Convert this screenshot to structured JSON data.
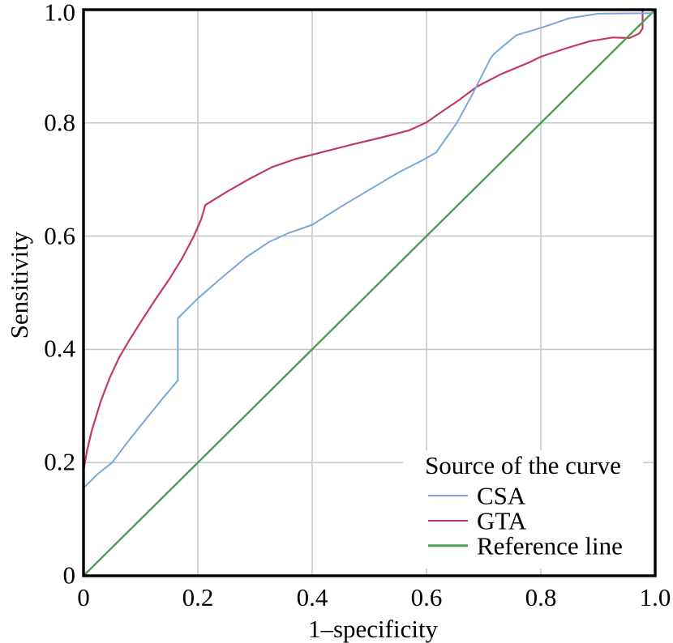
{
  "chart_data": {
    "type": "line",
    "title": "",
    "xlabel": "1–specificity",
    "ylabel": "Sensitivity",
    "xlim": [
      0,
      1.0
    ],
    "ylim": [
      0,
      1.0
    ],
    "grid": {
      "on": true,
      "color": "#c6cacd",
      "positions": [
        0.2,
        0.4,
        0.6,
        0.8
      ]
    },
    "frame_color": "#000000",
    "ticks": {
      "x": [
        0,
        0.2,
        0.4,
        0.6,
        0.8,
        1.0
      ],
      "x_labels": [
        "0",
        "0.2",
        "0.4",
        "0.6",
        "0.8",
        "1.0"
      ],
      "y": [
        0,
        0.2,
        0.4,
        0.6,
        0.8,
        1.0
      ],
      "y_labels": [
        "0",
        "0.2",
        "0.4",
        "0.6",
        "0.8",
        "1.0"
      ]
    },
    "legend": {
      "title": "Source of the curve",
      "position": "bottom-right"
    },
    "series": [
      {
        "name": "CSA",
        "color": "#7ba6d9",
        "line_width": 2.0,
        "legend_line_width": 2,
        "z": 3,
        "points": [
          [
            0.0,
            0.155
          ],
          [
            0.025,
            0.18
          ],
          [
            0.05,
            0.2
          ],
          [
            0.08,
            0.24
          ],
          [
            0.11,
            0.278
          ],
          [
            0.14,
            0.315
          ],
          [
            0.165,
            0.345
          ],
          [
            0.165,
            0.455
          ],
          [
            0.2,
            0.49
          ],
          [
            0.24,
            0.525
          ],
          [
            0.285,
            0.563
          ],
          [
            0.325,
            0.59
          ],
          [
            0.36,
            0.606
          ],
          [
            0.4,
            0.62
          ],
          [
            0.45,
            0.652
          ],
          [
            0.5,
            0.682
          ],
          [
            0.55,
            0.712
          ],
          [
            0.595,
            0.735
          ],
          [
            0.617,
            0.748
          ],
          [
            0.653,
            0.8
          ],
          [
            0.68,
            0.85
          ],
          [
            0.712,
            0.914
          ],
          [
            0.718,
            0.922
          ],
          [
            0.757,
            0.955
          ],
          [
            0.8,
            0.968
          ],
          [
            0.85,
            0.985
          ],
          [
            0.9,
            0.993
          ],
          [
            1.0,
            0.994
          ],
          [
            1.0,
            1.0
          ]
        ]
      },
      {
        "name": "GTA",
        "color": "#c23a64",
        "line_width": 2.2,
        "legend_line_width": 2,
        "z": 1,
        "points": [
          [
            0.0,
            0.0
          ],
          [
            0.0,
            0.185
          ],
          [
            0.006,
            0.22
          ],
          [
            0.014,
            0.255
          ],
          [
            0.03,
            0.308
          ],
          [
            0.046,
            0.35
          ],
          [
            0.062,
            0.385
          ],
          [
            0.08,
            0.416
          ],
          [
            0.1,
            0.448
          ],
          [
            0.125,
            0.487
          ],
          [
            0.15,
            0.524
          ],
          [
            0.172,
            0.56
          ],
          [
            0.193,
            0.6
          ],
          [
            0.206,
            0.63
          ],
          [
            0.213,
            0.655
          ],
          [
            0.25,
            0.678
          ],
          [
            0.29,
            0.701
          ],
          [
            0.33,
            0.722
          ],
          [
            0.37,
            0.736
          ],
          [
            0.42,
            0.749
          ],
          [
            0.47,
            0.762
          ],
          [
            0.52,
            0.774
          ],
          [
            0.57,
            0.787
          ],
          [
            0.6,
            0.801
          ],
          [
            0.63,
            0.822
          ],
          [
            0.655,
            0.839
          ],
          [
            0.688,
            0.864
          ],
          [
            0.73,
            0.886
          ],
          [
            0.78,
            0.907
          ],
          [
            0.8,
            0.917
          ],
          [
            0.845,
            0.932
          ],
          [
            0.885,
            0.944
          ],
          [
            0.925,
            0.951
          ],
          [
            0.955,
            0.95
          ],
          [
            0.972,
            0.958
          ],
          [
            0.978,
            0.967
          ],
          [
            0.978,
            1.0
          ],
          [
            1.0,
            1.0
          ]
        ]
      },
      {
        "name": "Reference line",
        "color": "#4f9c55",
        "line_width": 2.4,
        "legend_line_width": 3.5,
        "z": 2,
        "points": [
          [
            0.0,
            0.0
          ],
          [
            1.0,
            1.0
          ]
        ]
      }
    ]
  }
}
